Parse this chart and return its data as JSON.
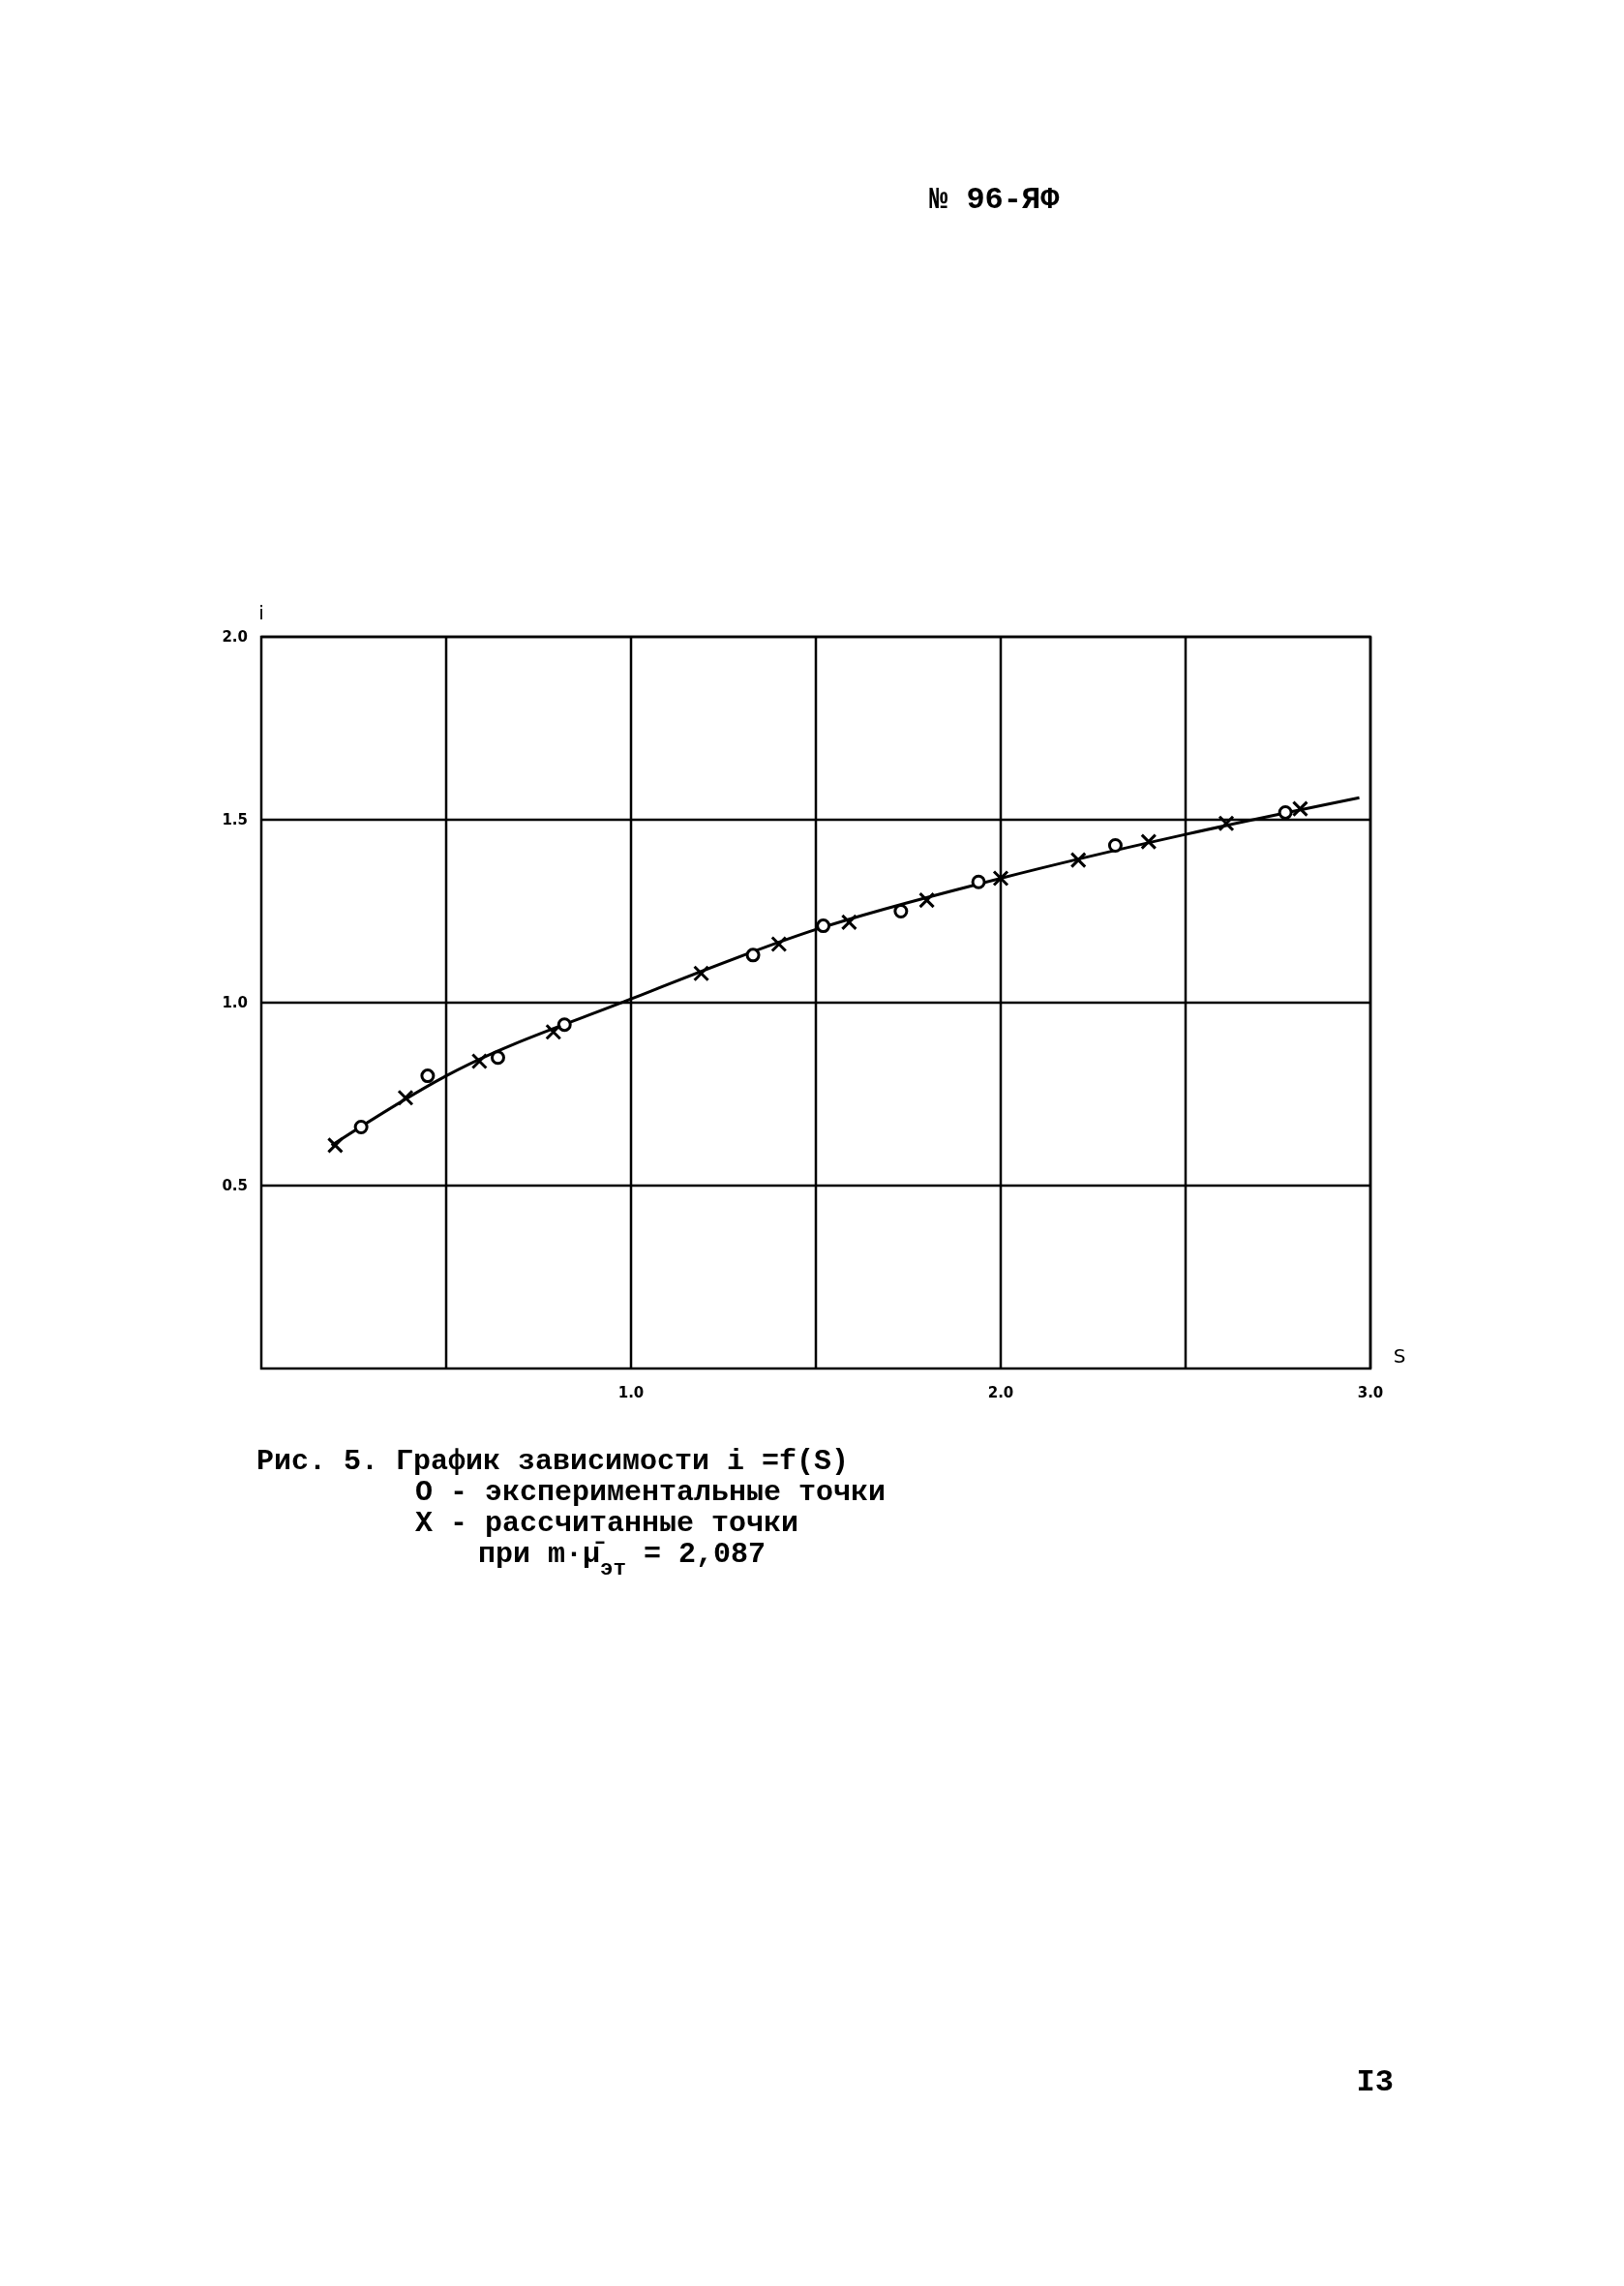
{
  "chart_data": {
    "type": "scatter",
    "title": "Рис. 5. График зависимости i =f(S)",
    "xlabel": "S",
    "ylabel": "i",
    "annotations": [
      "№ 96-ЯФ",
      "O - экспериментальные точки",
      "X - рассчитанные точки",
      "при m·μ̄$_{эт}$ = 2,087",
      "I3"
    ],
    "xlim": [
      0,
      3
    ],
    "ylim": [
      0,
      2
    ],
    "xticks": [
      {
        "value": 0.5,
        "label": null
      },
      {
        "value": 1,
        "label": "1.0"
      },
      {
        "value": 1.5,
        "label": null
      },
      {
        "value": 2,
        "label": "2.0"
      },
      {
        "value": 2.5,
        "label": null
      },
      {
        "value": 3,
        "label": "3.0"
      }
    ],
    "yticks": [
      {
        "value": 0.5,
        "label": "0.5"
      },
      {
        "value": 1,
        "label": "1.0"
      },
      {
        "value": 1.5,
        "label": "1.5"
      },
      {
        "value": 2,
        "label": "2.0"
      }
    ],
    "grid": true,
    "series": [
      {
        "type": "line",
        "color": "#000000",
        "marker": "none",
        "line_style": "solid",
        "x": [
          0.19,
          0.5,
          1.0,
          1.5,
          2.0,
          2.5,
          2.97
        ],
        "values": [
          0.61,
          0.8,
          1.01,
          1.2,
          1.34,
          1.46,
          1.56
        ]
      },
      {
        "type": "scatter",
        "color": "#000000",
        "marker": "circle",
        "x": [
          0.27,
          0.45,
          0.64,
          0.82,
          1.33,
          1.52,
          1.73,
          1.94,
          2.31,
          2.77
        ],
        "values": [
          0.66,
          0.8,
          0.85,
          0.94,
          1.13,
          1.21,
          1.25,
          1.33,
          1.43,
          1.52
        ]
      },
      {
        "type": "scatter",
        "color": "#000000",
        "marker": "cross",
        "x": [
          0.2,
          0.39,
          0.59,
          0.79,
          1.19,
          1.4,
          1.59,
          1.8,
          2.0,
          2.21,
          2.4,
          2.61,
          2.81
        ],
        "values": [
          0.61,
          0.74,
          0.84,
          0.92,
          1.08,
          1.16,
          1.22,
          1.28,
          1.34,
          1.39,
          1.44,
          1.49,
          1.53
        ]
      }
    ]
  }
}
